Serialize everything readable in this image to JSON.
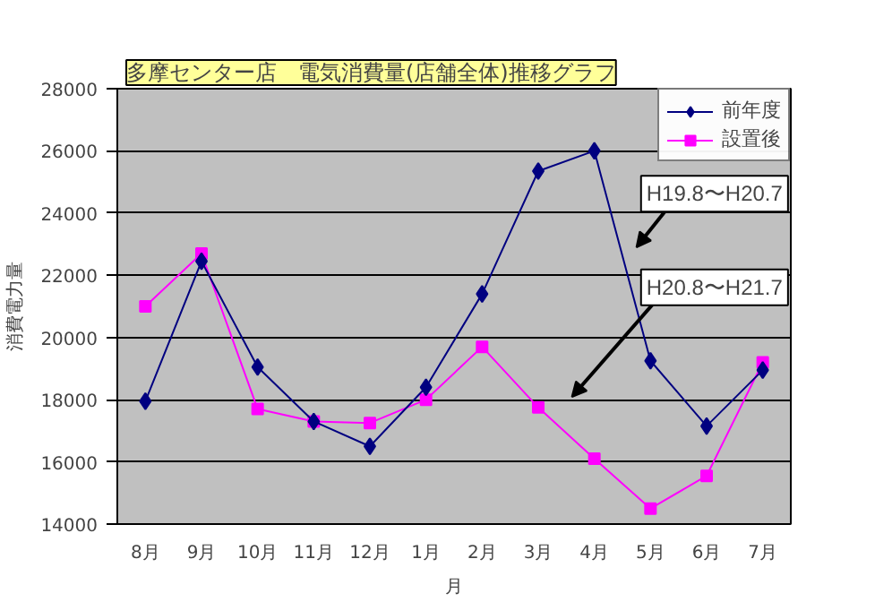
{
  "chart_data": {
    "type": "line",
    "title": "多摩センター店　電気消費量(店舗全体)推移グラフ",
    "xlabel": "月",
    "ylabel": "消費電力量",
    "categories": [
      "8月",
      "9月",
      "10月",
      "11月",
      "12月",
      "1月",
      "2月",
      "3月",
      "4月",
      "5月",
      "6月",
      "7月"
    ],
    "series": [
      {
        "name": "前年度",
        "color": "#000080",
        "marker": "diamond",
        "values": [
          17950,
          22450,
          19050,
          17300,
          16500,
          18400,
          21400,
          25350,
          26000,
          19250,
          17150,
          18950
        ]
      },
      {
        "name": "設置後",
        "color": "#ff00ff",
        "marker": "square",
        "values": [
          21000,
          22700,
          17700,
          17300,
          17250,
          18000,
          19700,
          17750,
          16100,
          14500,
          15550,
          19200
        ]
      }
    ],
    "ylim": [
      14000,
      28000
    ],
    "yticks": [
      14000,
      16000,
      18000,
      20000,
      22000,
      24000,
      26000,
      28000
    ],
    "grid": "y",
    "legend": "top right",
    "annotations": [
      "H19.8〜H20.7",
      "H20.8〜H21.7"
    ]
  }
}
